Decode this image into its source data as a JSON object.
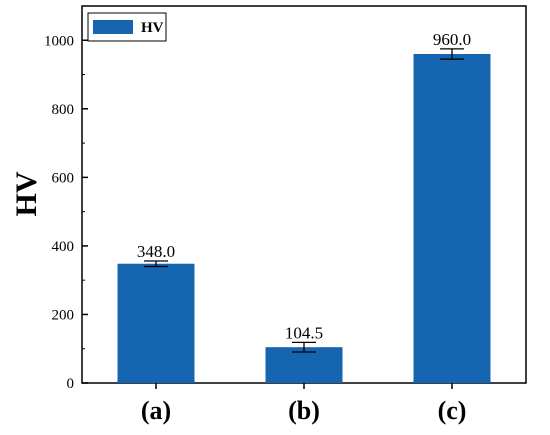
{
  "chart_data": {
    "type": "bar",
    "categories": [
      "(a)",
      "(b)",
      "(c)"
    ],
    "series": [
      {
        "name": "HV",
        "values": [
          348.0,
          104.5,
          960.0
        ],
        "errors": [
          8,
          14,
          15
        ],
        "value_labels": [
          "348.0",
          "104.5",
          "960.0"
        ],
        "color": "#1565b0"
      }
    ],
    "title": "",
    "xlabel": "",
    "ylabel": "HV",
    "ylim": [
      0,
      1100
    ],
    "yticks": [
      0,
      200,
      400,
      600,
      800,
      1000
    ],
    "grid": false,
    "legend": "top-left"
  }
}
